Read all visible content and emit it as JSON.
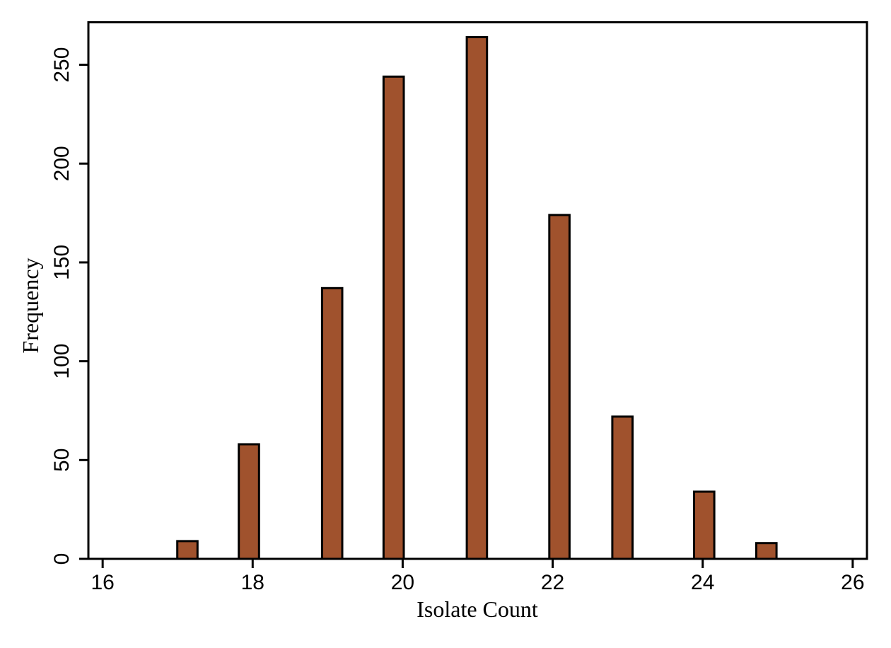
{
  "figure": {
    "background": "#ffffff",
    "frame_color": "#000000"
  },
  "chart_data": {
    "type": "bar",
    "subtype": "histogram",
    "title": "",
    "xlabel": "Isolate Count",
    "ylabel": "Frequency",
    "x": [
      17,
      18,
      19,
      20,
      21,
      22,
      23,
      24,
      25
    ],
    "values": [
      9,
      58,
      137,
      244,
      264,
      174,
      72,
      34,
      8
    ],
    "bar_centers": [
      17.13,
      17.95,
      19.06,
      19.88,
      20.99,
      22.09,
      22.93,
      24.02,
      24.85
    ],
    "bar_width": 0.27,
    "x_ticks": [
      16,
      18,
      20,
      22,
      24,
      26
    ],
    "y_ticks": [
      0,
      50,
      100,
      150,
      200,
      250
    ],
    "xlim": [
      15.81,
      26.19
    ],
    "ylim": [
      0,
      271.5
    ],
    "grid": false,
    "legend": false,
    "bar_fill_color": "#A0522D",
    "bar_outline_color": "#000000",
    "axis_color": "#000000",
    "y_tick_label_rotation_deg": -90
  }
}
